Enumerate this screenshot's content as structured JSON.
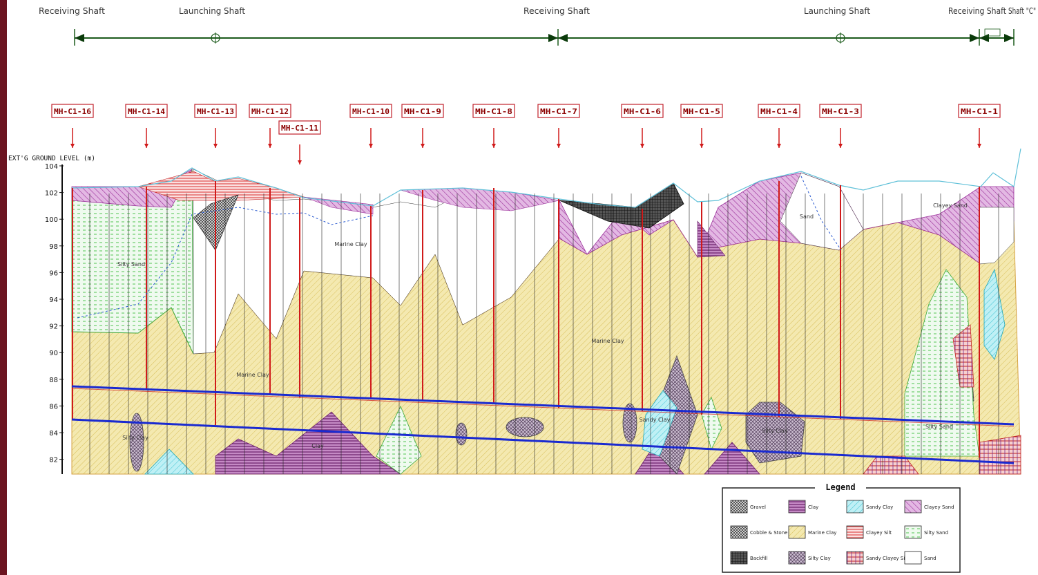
{
  "shafts": [
    {
      "name": "Receiving Shaft"
    },
    {
      "name": "Launching Shaft"
    },
    {
      "name": "Receiving Shaft"
    },
    {
      "name": "Launching Shaft"
    },
    {
      "name": "Receiving Shaft"
    },
    {
      "name": "Shaft \"C\""
    }
  ],
  "segment_lengths": [
    "",
    "",
    "",
    "",
    "",
    ""
  ],
  "manholes": [
    "MH-C1-16",
    "MH-C1-14",
    "MH-C1-13",
    "MH-C1-12",
    "MH-C1-11",
    "MH-C1-10",
    "MH-C1-9",
    "MH-C1-8",
    "MH-C1-7",
    "MH-C1-6",
    "MH-C1-5",
    "MH-C1-4",
    "MH-C1-3",
    "MH-C1-1"
  ],
  "axis": {
    "label": "EXT'G GROUND LEVEL (m)",
    "ticks": [
      "104",
      "102",
      "100",
      "98",
      "96",
      "94",
      "92",
      "90",
      "88",
      "86",
      "84",
      "82"
    ]
  },
  "soil_labels": {
    "silty_sand_left": "Silty Sand",
    "marine_clay_a": "Marine Clay",
    "marine_clay_b": "Marine Clay",
    "marine_clay_c": "Marine Clay",
    "sand_right": "Sand",
    "clayey_sand": "Clayey Sand",
    "silty_clay_left": "Silty Clay",
    "clay_mid": "Clay",
    "sandy_clay": "Sandy Clay",
    "silty_clay_right": "Silty Clay",
    "silty_sand_right": "Silty Sand"
  },
  "legend": {
    "title": "Legend",
    "items": [
      {
        "label": "Gravel",
        "color": "#8c8c8c"
      },
      {
        "label": "Clay",
        "color": "#9b3f8f"
      },
      {
        "label": "Sandy Clay",
        "color": "#5fd3e0"
      },
      {
        "label": "Clayey Sand",
        "color": "#b04fb0"
      },
      {
        "label": "Cobble & Stone",
        "color": "#707070"
      },
      {
        "label": "Marine Clay",
        "color": "#f2e6a6"
      },
      {
        "label": "Clayey Silt",
        "color": "#e0474c"
      },
      {
        "label": "Silty Sand",
        "color": "#6cd36c"
      },
      {
        "label": "Backfill",
        "color": "#3a3a3a"
      },
      {
        "label": "Silty Clay",
        "color": "#8e7c96"
      },
      {
        "label": "Sandy Clayey Silt",
        "color": "#d23a3a"
      },
      {
        "label": "Sand",
        "color": "#ffffff"
      }
    ]
  }
}
